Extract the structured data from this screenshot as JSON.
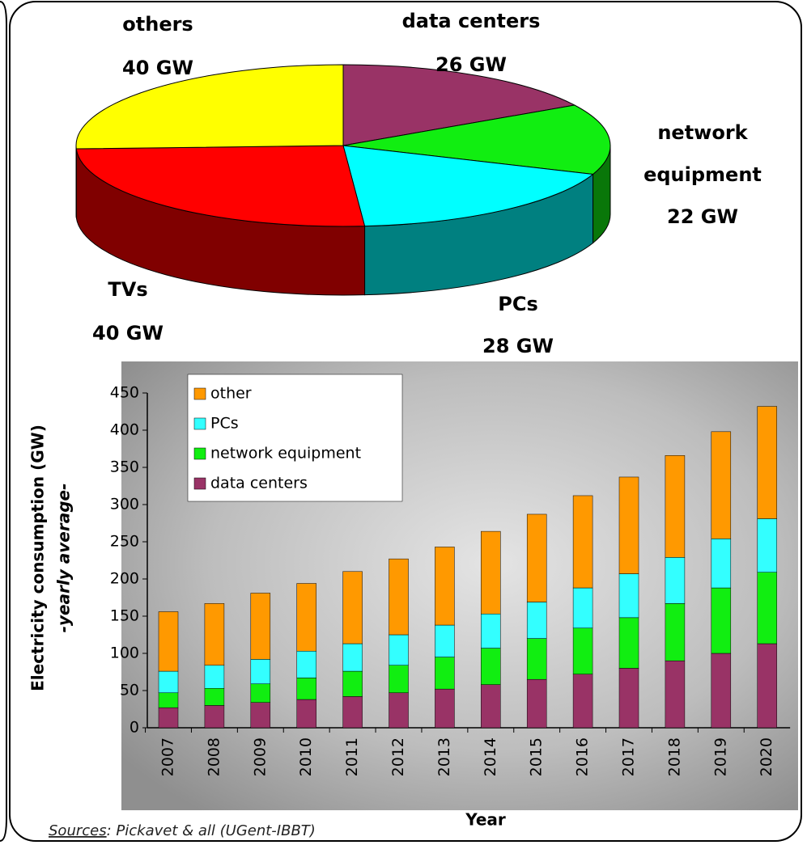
{
  "chart_data": [
    {
      "type": "pie",
      "categories": [
        "data centers",
        "network equipment",
        "PCs",
        "TVs",
        "others"
      ],
      "values": [
        26,
        22,
        28,
        40,
        40
      ],
      "value_labels": [
        "26 GW",
        "22 GW",
        "28 GW",
        "40 GW",
        "40 GW"
      ],
      "colors": [
        "#993366",
        "#11ee11",
        "#00ffff",
        "#ff0000",
        "#ffff00"
      ]
    },
    {
      "type": "bar",
      "stacked": true,
      "categories": [
        "2007",
        "2008",
        "2009",
        "2010",
        "2011",
        "2012",
        "2013",
        "2014",
        "2015",
        "2016",
        "2017",
        "2018",
        "2019",
        "2020"
      ],
      "series": [
        {
          "name": "data centers",
          "color": "#993366",
          "values": [
            27,
            30,
            34,
            38,
            42,
            47,
            52,
            58,
            65,
            72,
            80,
            90,
            100,
            113
          ]
        },
        {
          "name": "network equipment",
          "color": "#11ee11",
          "values": [
            20,
            23,
            25,
            29,
            34,
            37,
            43,
            49,
            55,
            62,
            68,
            77,
            88,
            96
          ]
        },
        {
          "name": "PCs",
          "color": "#33ffff",
          "values": [
            29,
            31,
            33,
            36,
            37,
            41,
            43,
            46,
            49,
            54,
            59,
            62,
            66,
            72
          ]
        },
        {
          "name": "other",
          "color": "#ff9900",
          "values": [
            80,
            83,
            89,
            91,
            97,
            102,
            105,
            111,
            118,
            124,
            130,
            137,
            144,
            151
          ]
        }
      ],
      "ylim": [
        0,
        450
      ],
      "yticks": [
        0,
        50,
        100,
        150,
        200,
        250,
        300,
        350,
        400,
        450
      ],
      "ylabel": "Electricity consumption (GW)",
      "ylabel2": "-yearly average-",
      "xlabel": "Year",
      "legend": "upper left"
    }
  ],
  "source": {
    "label": "Sources",
    "text": ": Pickavet & all (UGent-IBBT)"
  }
}
